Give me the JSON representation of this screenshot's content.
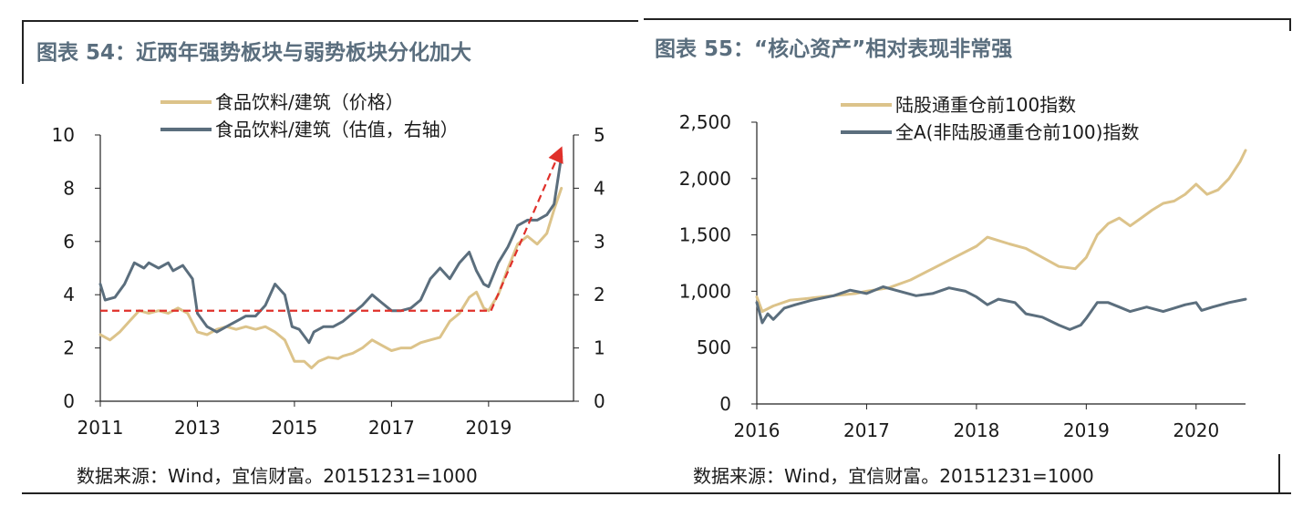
{
  "panels": [
    {
      "title": "图表 54：近两年强势板块与弱势板块分化加大",
      "source": "数据来源：Wind，宜信财富。20151231=1000"
    },
    {
      "title": "图表 55：“核心资产”相对表现非常强",
      "source": "数据来源：Wind，宜信财富。20151231=1000"
    }
  ],
  "colors": {
    "gold": "#dcc38a",
    "slate": "#5b6e7d",
    "red": "#e0302a",
    "title": "#5a6e7e"
  },
  "chart_data": [
    {
      "type": "line",
      "grid": false,
      "legend_position": "top",
      "x_ticks": [
        "2011",
        "2013",
        "2015",
        "2017",
        "2019"
      ],
      "xlim": [
        2011,
        2020.75
      ],
      "y_left": {
        "ticks": [
          "0",
          "2",
          "4",
          "6",
          "8",
          "10"
        ],
        "lim": [
          0,
          10
        ]
      },
      "y_right": {
        "ticks": [
          "0",
          "1",
          "2",
          "3",
          "4",
          "5"
        ],
        "lim": [
          0,
          5
        ]
      },
      "series": [
        {
          "name": "食品饮料/建筑（价格）",
          "axis": "left",
          "color": "#dcc38a",
          "points": [
            [
              2011.0,
              2.5
            ],
            [
              2011.2,
              2.3
            ],
            [
              2011.4,
              2.6
            ],
            [
              2011.6,
              3.0
            ],
            [
              2011.8,
              3.4
            ],
            [
              2012.0,
              3.3
            ],
            [
              2012.2,
              3.4
            ],
            [
              2012.4,
              3.3
            ],
            [
              2012.6,
              3.5
            ],
            [
              2012.8,
              3.3
            ],
            [
              2013.0,
              2.6
            ],
            [
              2013.2,
              2.5
            ],
            [
              2013.4,
              2.7
            ],
            [
              2013.6,
              2.8
            ],
            [
              2013.8,
              2.7
            ],
            [
              2014.0,
              2.8
            ],
            [
              2014.2,
              2.7
            ],
            [
              2014.4,
              2.8
            ],
            [
              2014.6,
              2.6
            ],
            [
              2014.8,
              2.3
            ],
            [
              2015.0,
              1.5
            ],
            [
              2015.2,
              1.5
            ],
            [
              2015.35,
              1.25
            ],
            [
              2015.5,
              1.5
            ],
            [
              2015.7,
              1.65
            ],
            [
              2015.9,
              1.6
            ],
            [
              2016.0,
              1.7
            ],
            [
              2016.2,
              1.8
            ],
            [
              2016.4,
              2.0
            ],
            [
              2016.6,
              2.3
            ],
            [
              2016.8,
              2.1
            ],
            [
              2017.0,
              1.9
            ],
            [
              2017.2,
              2.0
            ],
            [
              2017.4,
              2.0
            ],
            [
              2017.6,
              2.2
            ],
            [
              2017.8,
              2.3
            ],
            [
              2018.0,
              2.4
            ],
            [
              2018.2,
              3.0
            ],
            [
              2018.4,
              3.3
            ],
            [
              2018.6,
              3.9
            ],
            [
              2018.75,
              4.1
            ],
            [
              2018.9,
              3.5
            ],
            [
              2019.0,
              3.4
            ],
            [
              2019.2,
              4.0
            ],
            [
              2019.4,
              5.0
            ],
            [
              2019.6,
              5.9
            ],
            [
              2019.8,
              6.2
            ],
            [
              2020.0,
              5.9
            ],
            [
              2020.2,
              6.3
            ],
            [
              2020.35,
              7.2
            ],
            [
              2020.5,
              8.0
            ]
          ]
        },
        {
          "name": "食品饮料/建筑（估值，右轴）",
          "axis": "right",
          "color": "#5b6e7d",
          "points": [
            [
              2011.0,
              2.2
            ],
            [
              2011.1,
              1.9
            ],
            [
              2011.3,
              1.95
            ],
            [
              2011.5,
              2.2
            ],
            [
              2011.7,
              2.6
            ],
            [
              2011.9,
              2.5
            ],
            [
              2012.0,
              2.6
            ],
            [
              2012.2,
              2.5
            ],
            [
              2012.4,
              2.6
            ],
            [
              2012.5,
              2.45
            ],
            [
              2012.7,
              2.55
            ],
            [
              2012.9,
              2.3
            ],
            [
              2013.0,
              1.65
            ],
            [
              2013.2,
              1.4
            ],
            [
              2013.4,
              1.3
            ],
            [
              2013.6,
              1.4
            ],
            [
              2013.8,
              1.5
            ],
            [
              2014.0,
              1.6
            ],
            [
              2014.2,
              1.6
            ],
            [
              2014.4,
              1.8
            ],
            [
              2014.6,
              2.2
            ],
            [
              2014.8,
              2.0
            ],
            [
              2014.95,
              1.4
            ],
            [
              2015.1,
              1.35
            ],
            [
              2015.3,
              1.1
            ],
            [
              2015.4,
              1.3
            ],
            [
              2015.6,
              1.4
            ],
            [
              2015.8,
              1.4
            ],
            [
              2016.0,
              1.5
            ],
            [
              2016.2,
              1.65
            ],
            [
              2016.4,
              1.8
            ],
            [
              2016.6,
              2.0
            ],
            [
              2016.8,
              1.85
            ],
            [
              2017.0,
              1.7
            ],
            [
              2017.2,
              1.7
            ],
            [
              2017.4,
              1.75
            ],
            [
              2017.6,
              1.9
            ],
            [
              2017.8,
              2.3
            ],
            [
              2018.0,
              2.5
            ],
            [
              2018.2,
              2.3
            ],
            [
              2018.4,
              2.6
            ],
            [
              2018.6,
              2.8
            ],
            [
              2018.75,
              2.45
            ],
            [
              2018.9,
              2.2
            ],
            [
              2019.0,
              2.15
            ],
            [
              2019.2,
              2.6
            ],
            [
              2019.4,
              2.9
            ],
            [
              2019.6,
              3.3
            ],
            [
              2019.8,
              3.4
            ],
            [
              2020.0,
              3.4
            ],
            [
              2020.2,
              3.5
            ],
            [
              2020.35,
              3.7
            ],
            [
              2020.5,
              4.6
            ]
          ]
        }
      ],
      "annotations": [
        {
          "type": "dashed-horizontal",
          "axis": "left",
          "y": 3.4,
          "x_range": [
            2011,
            2019.05
          ],
          "color": "#e0302a"
        },
        {
          "type": "dashed-arrow",
          "axis": "left",
          "from": [
            2019.05,
            3.4
          ],
          "to": [
            2020.45,
            9.3
          ],
          "color": "#e0302a"
        }
      ]
    },
    {
      "type": "line",
      "grid": false,
      "legend_position": "top",
      "x_ticks": [
        "2016",
        "2017",
        "2018",
        "2019",
        "2020"
      ],
      "xlim": [
        2016,
        2020.45
      ],
      "y_left": {
        "ticks": [
          "0",
          "500",
          "1,000",
          "1,500",
          "2,000",
          "2,500"
        ],
        "lim": [
          0,
          2500
        ]
      },
      "series": [
        {
          "name": "陆股通重仓前100指数",
          "axis": "left",
          "color": "#dcc38a",
          "points": [
            [
              2016.0,
              950
            ],
            [
              2016.05,
              820
            ],
            [
              2016.15,
              870
            ],
            [
              2016.3,
              920
            ],
            [
              2016.5,
              940
            ],
            [
              2016.7,
              960
            ],
            [
              2016.9,
              980
            ],
            [
              2017.0,
              1000
            ],
            [
              2017.2,
              1030
            ],
            [
              2017.4,
              1100
            ],
            [
              2017.6,
              1200
            ],
            [
              2017.8,
              1300
            ],
            [
              2018.0,
              1400
            ],
            [
              2018.1,
              1480
            ],
            [
              2018.2,
              1450
            ],
            [
              2018.3,
              1420
            ],
            [
              2018.45,
              1380
            ],
            [
              2018.6,
              1300
            ],
            [
              2018.75,
              1220
            ],
            [
              2018.9,
              1200
            ],
            [
              2019.0,
              1300
            ],
            [
              2019.1,
              1500
            ],
            [
              2019.2,
              1600
            ],
            [
              2019.3,
              1650
            ],
            [
              2019.4,
              1580
            ],
            [
              2019.5,
              1650
            ],
            [
              2019.6,
              1720
            ],
            [
              2019.7,
              1780
            ],
            [
              2019.8,
              1800
            ],
            [
              2019.9,
              1860
            ],
            [
              2020.0,
              1950
            ],
            [
              2020.1,
              1860
            ],
            [
              2020.2,
              1900
            ],
            [
              2020.3,
              2000
            ],
            [
              2020.4,
              2150
            ],
            [
              2020.45,
              2250
            ]
          ]
        },
        {
          "name": "全A(非陆股通重仓前100)指数",
          "axis": "left",
          "color": "#5b6e7d",
          "points": [
            [
              2016.0,
              900
            ],
            [
              2016.05,
              720
            ],
            [
              2016.1,
              800
            ],
            [
              2016.15,
              750
            ],
            [
              2016.25,
              850
            ],
            [
              2016.35,
              880
            ],
            [
              2016.5,
              920
            ],
            [
              2016.7,
              960
            ],
            [
              2016.85,
              1010
            ],
            [
              2017.0,
              980
            ],
            [
              2017.15,
              1040
            ],
            [
              2017.3,
              1000
            ],
            [
              2017.45,
              960
            ],
            [
              2017.6,
              980
            ],
            [
              2017.75,
              1030
            ],
            [
              2017.9,
              1000
            ],
            [
              2018.0,
              950
            ],
            [
              2018.1,
              880
            ],
            [
              2018.2,
              930
            ],
            [
              2018.35,
              900
            ],
            [
              2018.45,
              800
            ],
            [
              2018.6,
              770
            ],
            [
              2018.75,
              700
            ],
            [
              2018.85,
              660
            ],
            [
              2018.95,
              700
            ],
            [
              2019.0,
              760
            ],
            [
              2019.1,
              900
            ],
            [
              2019.2,
              900
            ],
            [
              2019.3,
              860
            ],
            [
              2019.4,
              820
            ],
            [
              2019.55,
              860
            ],
            [
              2019.7,
              820
            ],
            [
              2019.8,
              850
            ],
            [
              2019.9,
              880
            ],
            [
              2020.0,
              900
            ],
            [
              2020.05,
              830
            ],
            [
              2020.15,
              860
            ],
            [
              2020.3,
              900
            ],
            [
              2020.45,
              930
            ]
          ]
        }
      ]
    }
  ]
}
